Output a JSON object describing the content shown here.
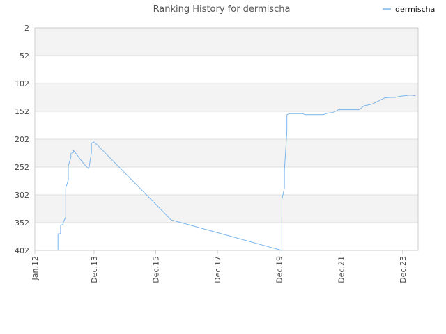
{
  "chart_data": {
    "type": "line",
    "title": "Ranking History for dermischa",
    "xlabel": "",
    "ylabel": "",
    "y_inverted": true,
    "ylim": [
      2,
      402
    ],
    "y_ticks": [
      2,
      52,
      102,
      152,
      202,
      252,
      302,
      352,
      402
    ],
    "x_ticks": [
      "Jan.12",
      "Dec.13",
      "Dec.15",
      "Dec.17",
      "Dec.19",
      "Dec.21",
      "Dec.23"
    ],
    "xlim": [
      "2012-01",
      "2024-06"
    ],
    "grid": true,
    "legend": {
      "position": "top-right",
      "entries": [
        "dermischa"
      ]
    },
    "colors": {
      "series": "#7cb5ec",
      "band": "#f3f3f3",
      "grid": "#dddddd",
      "axis": "#cccccc",
      "text": "#444444"
    },
    "series": [
      {
        "name": "dermischa",
        "x": [
          "2012-10",
          "2012-10",
          "2012-11",
          "2012-11",
          "2012-12",
          "2012-12",
          "2013-01",
          "2013-01",
          "2013-01",
          "2013-02",
          "2013-02",
          "2013-03",
          "2013-03",
          "2013-04",
          "2013-04",
          "2013-05",
          "2013-06",
          "2013-07",
          "2013-08",
          "2013-09",
          "2013-10",
          "2013-11",
          "2013-11",
          "2013-11",
          "2013-12",
          "2013-12",
          "2014-01",
          "2016-06",
          "2020-01",
          "2020-01",
          "2020-01",
          "2020-02",
          "2020-02",
          "2020-03",
          "2020-03",
          "2020-03",
          "2020-04",
          "2020-09",
          "2020-10",
          "2021-05",
          "2021-07",
          "2021-09",
          "2021-11",
          "2022-06",
          "2022-07",
          "2022-09",
          "2022-10",
          "2022-12",
          "2023-01",
          "2023-04",
          "2023-05",
          "2023-07",
          "2023-09",
          "2023-11",
          "2024-03",
          "2024-05"
        ],
        "values": [
          402,
          372,
          372,
          357,
          355,
          352,
          342,
          296,
          290,
          275,
          250,
          235,
          228,
          226,
          222,
          228,
          234,
          240,
          246,
          251,
          255,
          226,
          223,
          209,
          207,
          208,
          211,
          347,
          402,
          380,
          311,
          290,
          258,
          188,
          176,
          158,
          156,
          156,
          158,
          158,
          155,
          154,
          149,
          149,
          149,
          142,
          141,
          139,
          137,
          130,
          128,
          127,
          127,
          125,
          123,
          124
        ]
      }
    ]
  }
}
